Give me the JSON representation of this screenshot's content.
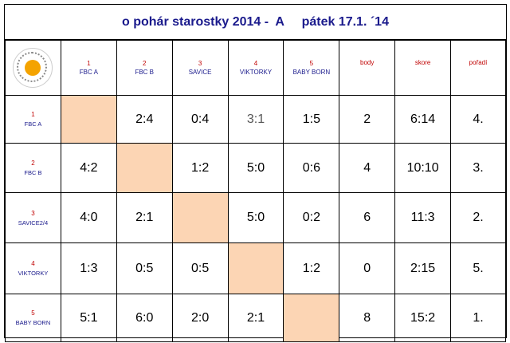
{
  "title": "o pohár starostky 2014 -  A     pátek 17.1. ´14",
  "logo": {
    "icon": "tournament-logo-icon"
  },
  "columns": [
    {
      "num": "1",
      "name": "FBC A"
    },
    {
      "num": "2",
      "name": "FBC B"
    },
    {
      "num": "3",
      "name": "SAVICE"
    },
    {
      "num": "4",
      "name": "VIKTORKY"
    },
    {
      "num": "5",
      "name": "BABY BORN"
    }
  ],
  "stat_headers": {
    "points": "body",
    "score": "skore",
    "rank": "pořadí"
  },
  "rows": [
    {
      "num": "1",
      "name": "FBC  A",
      "cells": [
        "",
        "2:4",
        "0:4",
        "3:1",
        "1:5"
      ],
      "points": "2",
      "score": "6:14",
      "rank": "4."
    },
    {
      "num": "2",
      "name": "FBC  B",
      "cells": [
        "4:2",
        "",
        "1:2",
        "5:0",
        "0:6"
      ],
      "points": "4",
      "score": "10:10",
      "rank": "3."
    },
    {
      "num": "3",
      "name": "SAVICE2/4",
      "cells": [
        "4:0",
        "2:1",
        "",
        "5:0",
        "0:2"
      ],
      "points": "6",
      "score": "11:3",
      "rank": "2."
    },
    {
      "num": "4",
      "name": "VIKTORKY",
      "cells": [
        "1:3",
        "0:5",
        "0:5",
        "",
        "1:2"
      ],
      "points": "0",
      "score": "2:15",
      "rank": "5."
    },
    {
      "num": "5",
      "name": "BABY BORN",
      "cells": [
        "5:1",
        "6:0",
        "2:0",
        "2:1",
        ""
      ],
      "points": "8",
      "score": "15:2",
      "rank": "1."
    }
  ],
  "colors": {
    "title": "#1a1a8c",
    "number": "#c00000",
    "diagonal": "#fcd5b4"
  }
}
